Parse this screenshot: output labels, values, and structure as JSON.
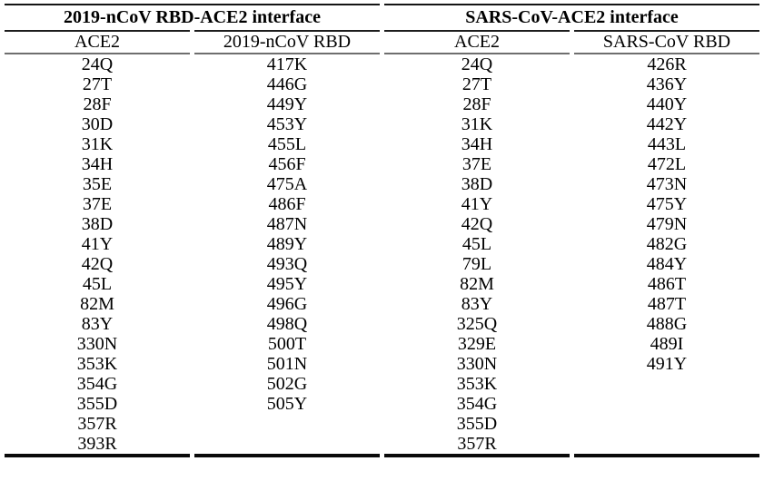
{
  "table": {
    "groups": [
      {
        "label": "2019-nCoV RBD-ACE2 interface"
      },
      {
        "label": "SARS-CoV-ACE2 interface"
      }
    ],
    "columns": [
      {
        "header": "ACE2",
        "values": [
          "24Q",
          "27T",
          "28F",
          "30D",
          "31K",
          "34H",
          "35E",
          "37E",
          "38D",
          "41Y",
          "42Q",
          "45L",
          "82M",
          "83Y",
          "330N",
          "353K",
          "354G",
          "355D",
          "357R",
          "393R"
        ]
      },
      {
        "header": "2019-nCoV RBD",
        "values": [
          "417K",
          "446G",
          "449Y",
          "453Y",
          "455L",
          "456F",
          "475A",
          "486F",
          "487N",
          "489Y",
          "493Q",
          "495Y",
          "496G",
          "498Q",
          "500T",
          "501N",
          "502G",
          "505Y"
        ]
      },
      {
        "header": "ACE2",
        "values": [
          "24Q",
          "27T",
          "28F",
          "31K",
          "34H",
          "37E",
          "38D",
          "41Y",
          "42Q",
          "45L",
          "79L",
          "82M",
          "83Y",
          "325Q",
          "329E",
          "330N",
          "353K",
          "354G",
          "355D",
          "357R"
        ]
      },
      {
        "header": "SARS-CoV RBD",
        "values": [
          "426R",
          "436Y",
          "440Y",
          "442Y",
          "443L",
          "472L",
          "473N",
          "475Y",
          "479N",
          "482G",
          "484Y",
          "486T",
          "487T",
          "488G",
          "489I",
          "491Y"
        ]
      }
    ],
    "row_count": 20
  },
  "colors": {
    "background": "#ffffff",
    "text": "#000000",
    "rule_dark": "#141414",
    "rule_gray": "#6e6e6e"
  }
}
